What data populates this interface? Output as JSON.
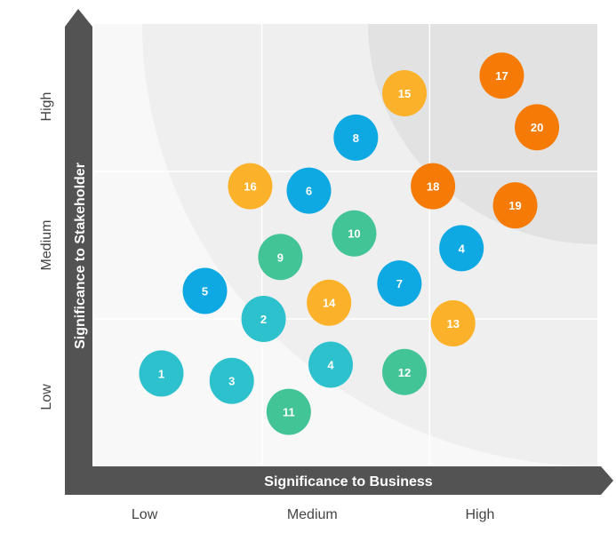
{
  "chart_data": {
    "type": "scatter",
    "title": "",
    "xlabel": "Significance to Business",
    "ylabel": "Significance to Stakeholder",
    "xlim": [
      0,
      3
    ],
    "ylim": [
      0,
      3
    ],
    "x_ticks": [
      "Low",
      "Medium",
      "High"
    ],
    "y_ticks": [
      "Low",
      "Medium",
      "High"
    ],
    "grid": true,
    "colors": {
      "teal": "#2cc1cd",
      "green": "#43c497",
      "blue": "#0ea8e3",
      "yellow": "#fbb12a",
      "orange": "#f57b06",
      "axis": "#535353"
    },
    "points": [
      {
        "label": "1",
        "x": 0.4,
        "y": 0.63,
        "color": "teal"
      },
      {
        "label": "3",
        "x": 0.82,
        "y": 0.58,
        "color": "teal"
      },
      {
        "label": "5",
        "x": 0.66,
        "y": 1.19,
        "color": "blue"
      },
      {
        "label": "2",
        "x": 1.01,
        "y": 1.0,
        "color": "teal"
      },
      {
        "label": "11",
        "x": 1.16,
        "y": 0.37,
        "color": "green"
      },
      {
        "label": "4",
        "x": 1.41,
        "y": 0.69,
        "color": "teal"
      },
      {
        "label": "14",
        "x": 1.4,
        "y": 1.11,
        "color": "yellow"
      },
      {
        "label": "9",
        "x": 1.11,
        "y": 1.42,
        "color": "green"
      },
      {
        "label": "10",
        "x": 1.55,
        "y": 1.58,
        "color": "green"
      },
      {
        "label": "16",
        "x": 0.93,
        "y": 1.9,
        "color": "yellow"
      },
      {
        "label": "6",
        "x": 1.28,
        "y": 1.87,
        "color": "blue"
      },
      {
        "label": "8",
        "x": 1.56,
        "y": 2.23,
        "color": "blue"
      },
      {
        "label": "7",
        "x": 1.82,
        "y": 1.24,
        "color": "blue"
      },
      {
        "label": "12",
        "x": 1.85,
        "y": 0.64,
        "color": "green"
      },
      {
        "label": "13",
        "x": 2.14,
        "y": 0.97,
        "color": "yellow"
      },
      {
        "label": "4",
        "x": 2.19,
        "y": 1.48,
        "color": "blue"
      },
      {
        "label": "18",
        "x": 2.02,
        "y": 1.9,
        "color": "orange"
      },
      {
        "label": "15",
        "x": 1.85,
        "y": 2.53,
        "color": "yellow"
      },
      {
        "label": "19",
        "x": 2.51,
        "y": 1.77,
        "color": "orange"
      },
      {
        "label": "17",
        "x": 2.43,
        "y": 2.65,
        "color": "orange"
      },
      {
        "label": "20",
        "x": 2.64,
        "y": 2.3,
        "color": "orange"
      }
    ]
  }
}
